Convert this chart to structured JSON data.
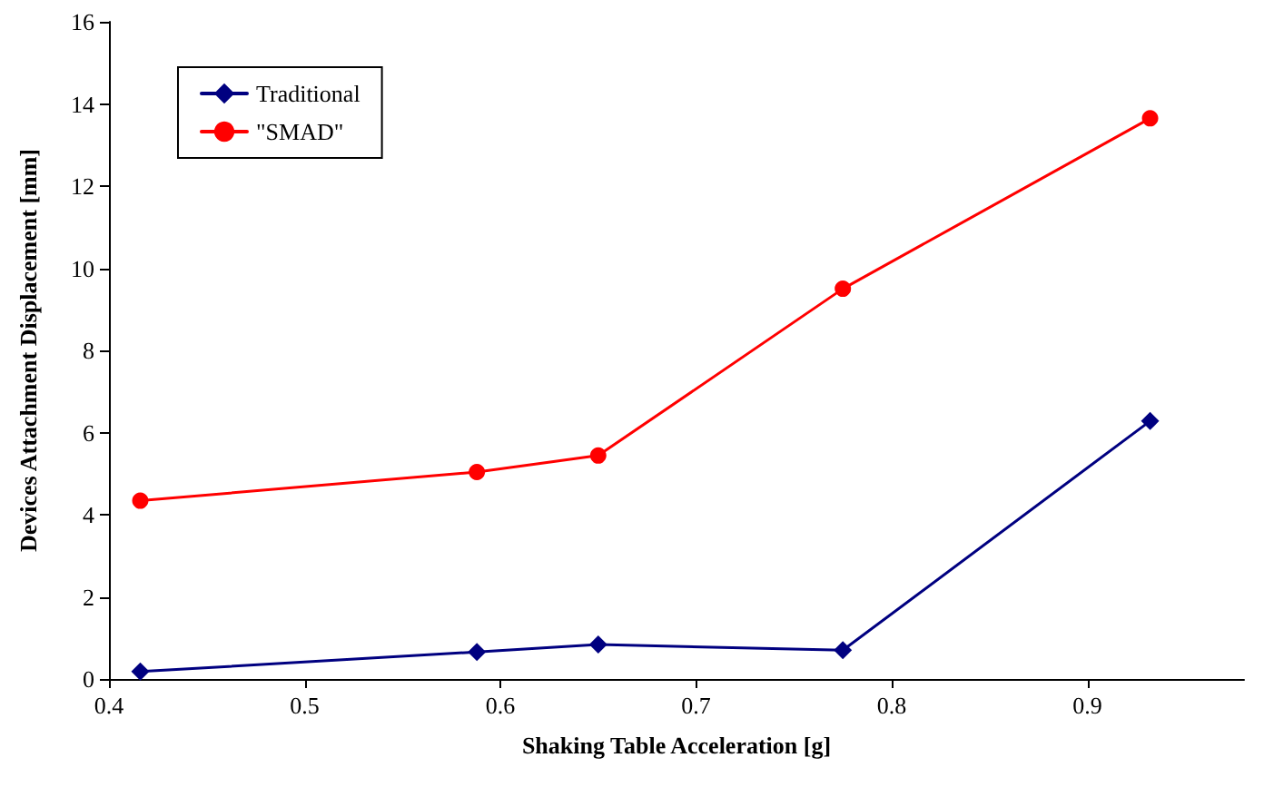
{
  "chart_data": {
    "type": "line",
    "xlabel": "Shaking Table Acceleration [g]",
    "ylabel": "Devices Attachment Displacement [mm]",
    "x": [
      0.416,
      0.588,
      0.65,
      0.775,
      0.932
    ],
    "series": [
      {
        "name": "Traditional",
        "color": "#000080",
        "marker": "diamond",
        "values": [
          0.18,
          0.66,
          0.84,
          0.7,
          6.28
        ]
      },
      {
        "name": "\"SMAD\"",
        "color": "#ff0000",
        "marker": "circle",
        "values": [
          4.34,
          5.04,
          5.44,
          9.5,
          13.65
        ]
      }
    ],
    "xlim": [
      0.4,
      0.98
    ],
    "xticks": [
      0.4,
      0.5,
      0.6,
      0.7,
      0.8,
      0.9
    ],
    "ylim": [
      0,
      16
    ],
    "yticks": [
      0,
      2,
      4,
      6,
      8,
      10,
      12,
      14,
      16
    ],
    "grid": false,
    "legend": "top left",
    "line_style": "solid"
  }
}
